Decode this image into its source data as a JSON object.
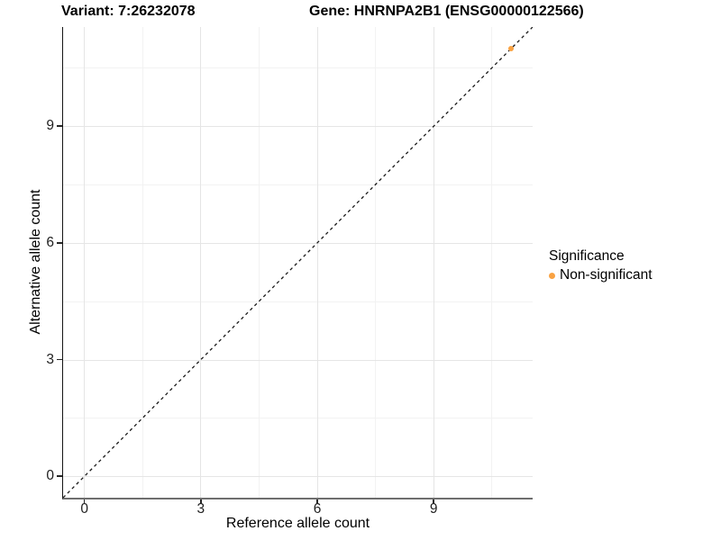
{
  "header": {
    "variant_title": "Variant: 7:26232078",
    "gene_title": "Gene: HNRNPA2B1 (ENSG00000122566)"
  },
  "chart_data": {
    "type": "scatter",
    "title": "",
    "xlabel": "Reference allele count",
    "ylabel": "Alternative allele count",
    "xlim": [
      -0.55,
      11.55
    ],
    "ylim": [
      -0.55,
      11.55
    ],
    "x_ticks": [
      0,
      3,
      6,
      9
    ],
    "y_ticks": [
      0,
      3,
      6,
      9
    ],
    "x_minor_gridlines": [
      1.5,
      4.5,
      7.5,
      10.5
    ],
    "y_minor_gridlines": [
      1.5,
      4.5,
      7.5,
      10.5
    ],
    "grid": "on",
    "reference_line": {
      "style": "dashed",
      "color": "#1a1a1a",
      "from": [
        -0.55,
        -0.55
      ],
      "to": [
        11.55,
        11.55
      ]
    },
    "series": [
      {
        "name": "Non-significant",
        "color": "#F9A242",
        "points": [
          [
            11,
            11
          ]
        ]
      }
    ],
    "legend": {
      "title": "Significance",
      "position": "right",
      "items": [
        {
          "label": "Non-significant",
          "color": "#F9A242"
        }
      ]
    }
  },
  "colors": {
    "background": "#ffffff",
    "grid_major": "#e5e5e5",
    "grid_minor": "#f2f2f2",
    "axis_line_left": "#141414",
    "axis_line_bottom": "#6e6e6e",
    "tick_label": "#1f1f1f",
    "title_text": "#000000"
  }
}
